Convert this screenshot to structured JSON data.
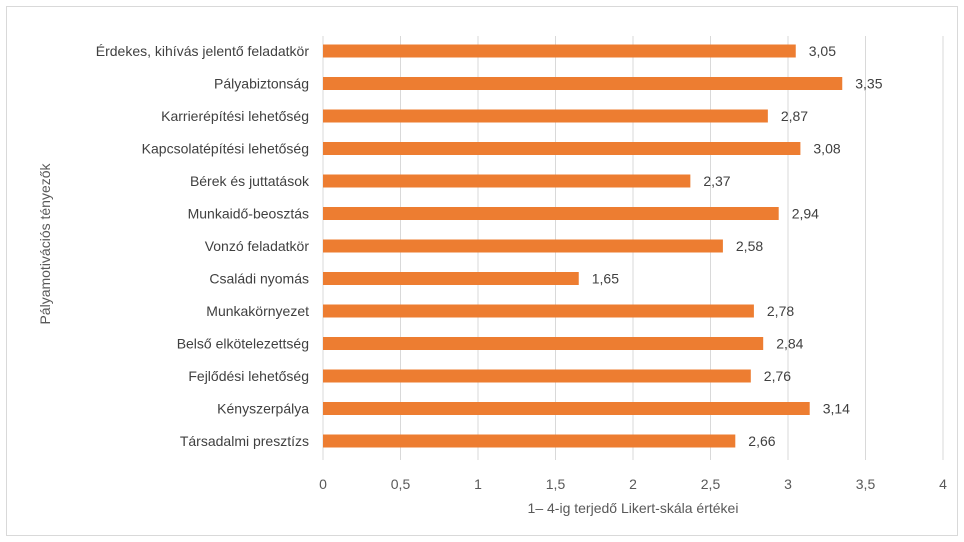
{
  "chart_data": {
    "type": "bar",
    "orientation": "horizontal",
    "categories": [
      "Érdekes, kihívás jelentő feladatkör",
      "Pályabiztonság",
      "Karrierépítési lehetőség",
      "Kapcsolatépítési lehetőség",
      "Bérek és  juttatások",
      "Munkaidő-beosztás",
      "Vonzó feladatkör",
      "Családi nyomás",
      "Munkakörnyezet",
      "Belső elkötelezettség",
      "Fejlődési lehetőség",
      "Kényszerpálya",
      "Társadalmi  presztízs"
    ],
    "values": [
      3.05,
      3.35,
      2.87,
      3.08,
      2.37,
      2.94,
      2.58,
      1.65,
      2.78,
      2.84,
      2.76,
      3.14,
      2.66
    ],
    "data_labels": [
      "3,05",
      "3,35",
      "2,87",
      "3,08",
      "2,37",
      "2,94",
      "2,58",
      "1,65",
      "2,78",
      "2,84",
      "2,76",
      "3,14",
      "2,66"
    ],
    "x_ticks": [
      "0",
      "0,5",
      "1",
      "1,5",
      "2",
      "2,5",
      "3",
      "3,5",
      "4"
    ],
    "xlim": [
      0,
      4
    ],
    "xlabel": "1– 4-ig terjedő Likert-skála értékei",
    "ylabel": "Pályamotivációs tényezők",
    "title": "",
    "bar_color": "#ED7D31",
    "grid": "vertical",
    "grid_color": "#d9d9d9"
  }
}
